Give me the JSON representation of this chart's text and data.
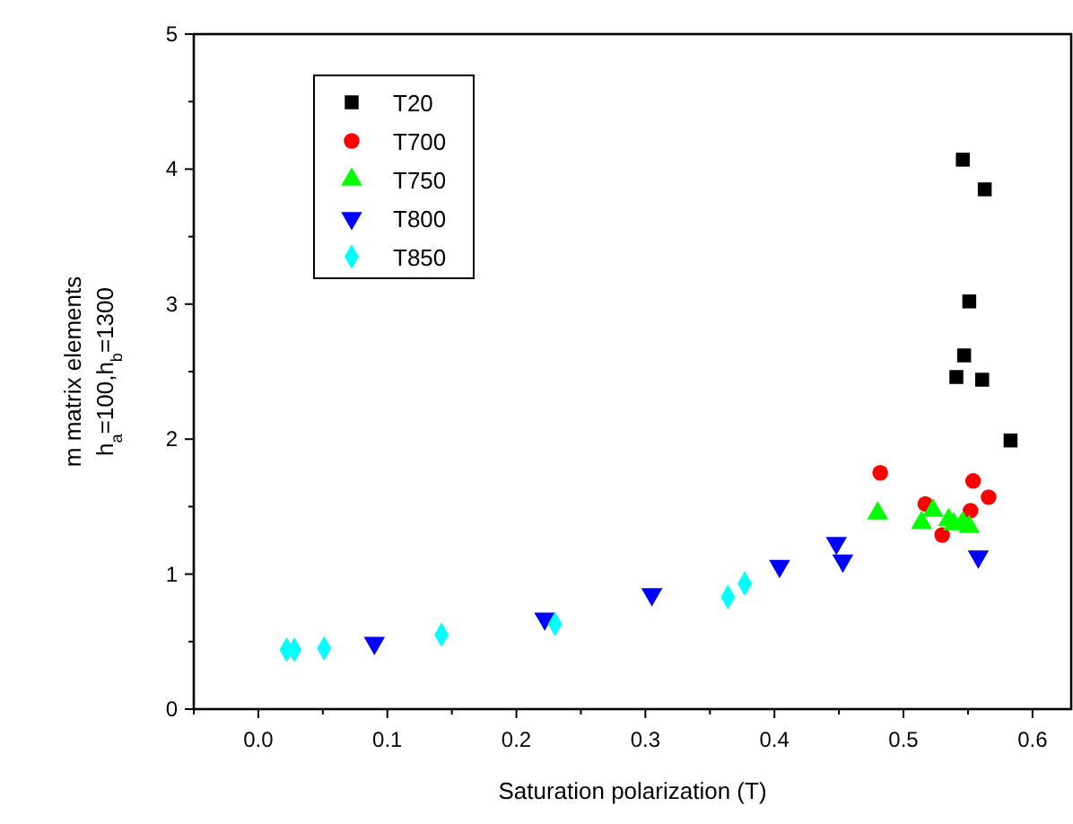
{
  "chart_data": {
    "type": "scatter",
    "xlabel": "Saturation polarization  (T)",
    "ylabel": "m matrix elements\nh$_{a}$=100,h$_{b}$=1300",
    "xlim": [
      -0.05,
      0.63
    ],
    "ylim": [
      0,
      5
    ],
    "xticks": [
      {
        "value": -0.05,
        "label": null
      },
      {
        "value": 0,
        "label": "0.0"
      },
      {
        "value": 0.05,
        "label": null
      },
      {
        "value": 0.1,
        "label": "0.1"
      },
      {
        "value": 0.15,
        "label": null
      },
      {
        "value": 0.2,
        "label": "0.2"
      },
      {
        "value": 0.25,
        "label": null
      },
      {
        "value": 0.3,
        "label": "0.3"
      },
      {
        "value": 0.35,
        "label": null
      },
      {
        "value": 0.4,
        "label": "0.4"
      },
      {
        "value": 0.45,
        "label": null
      },
      {
        "value": 0.5,
        "label": "0.5"
      },
      {
        "value": 0.55,
        "label": null
      },
      {
        "value": 0.6,
        "label": "0.6"
      }
    ],
    "yticks": [
      0,
      {
        "value": 0.5,
        "label": null
      },
      1,
      {
        "value": 1.5,
        "label": null
      },
      2,
      {
        "value": 2.5,
        "label": null
      },
      3,
      {
        "value": 3.5,
        "label": null
      },
      4,
      {
        "value": 4.5,
        "label": null
      },
      5
    ],
    "grid": false,
    "legend": "top left",
    "series": [
      {
        "name": "T20",
        "color": "#000000",
        "marker": "square",
        "x": [
          0.546,
          0.563,
          0.551,
          0.547,
          0.541,
          0.561,
          0.583
        ],
        "values": [
          4.07,
          3.85,
          3.02,
          2.62,
          2.46,
          2.44,
          1.99
        ]
      },
      {
        "name": "T700",
        "color": "#ff0000",
        "marker": "circle",
        "x": [
          0.482,
          0.554,
          0.566,
          0.517,
          0.552,
          0.53
        ],
        "values": [
          1.75,
          1.69,
          1.57,
          1.52,
          1.47,
          1.29
        ]
      },
      {
        "name": "T750",
        "color": "#00ff00",
        "marker": "triangle",
        "x": [
          0.48,
          0.523,
          0.514,
          0.535,
          0.539,
          0.546,
          0.551
        ],
        "values": [
          1.45,
          1.47,
          1.38,
          1.4,
          1.37,
          1.38,
          1.35
        ]
      },
      {
        "name": "T800",
        "color": "#0000ff",
        "marker": "triangle-down",
        "x": [
          0.09,
          0.222,
          0.305,
          0.404,
          0.448,
          0.453,
          0.558
        ],
        "values": [
          0.49,
          0.67,
          0.85,
          1.06,
          1.23,
          1.1,
          1.13
        ]
      },
      {
        "name": "T850",
        "color": "#00ffff",
        "marker": "diamond",
        "x": [
          0.022,
          0.028,
          0.051,
          0.142,
          0.23,
          0.364,
          0.377
        ],
        "values": [
          0.44,
          0.44,
          0.45,
          0.55,
          0.63,
          0.83,
          0.93
        ]
      }
    ]
  }
}
